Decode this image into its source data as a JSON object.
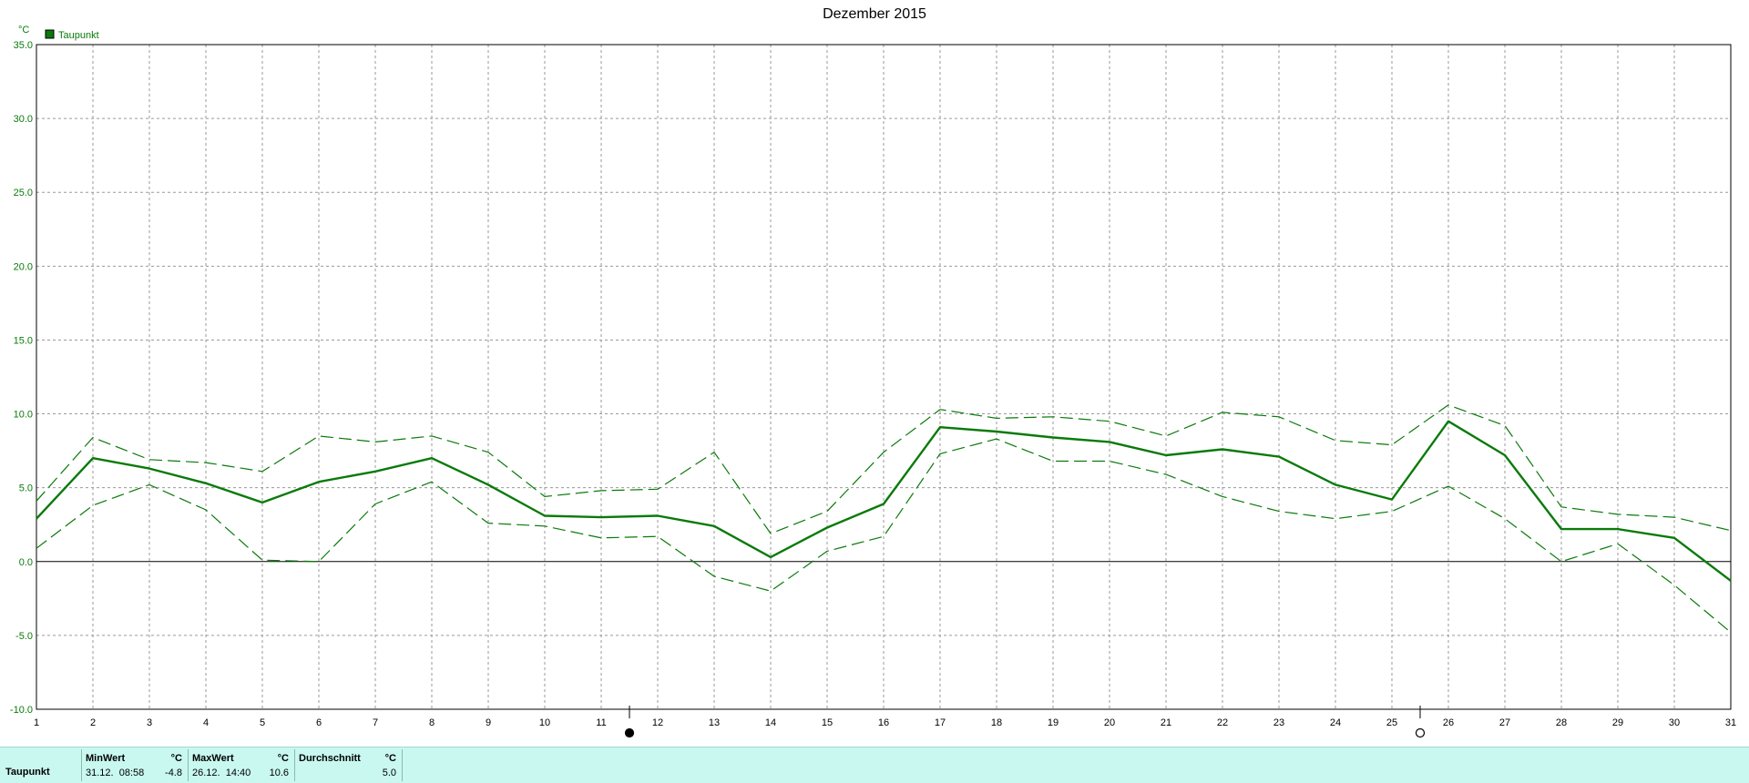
{
  "chart_data": {
    "type": "line",
    "title": "Dezember 2015",
    "ylabel": "°C",
    "ylim": [
      -10,
      35
    ],
    "yticks": [
      "35.0",
      "30.0",
      "25.0",
      "20.0",
      "15.0",
      "10.0",
      "5.0",
      "0.0",
      "-5.0",
      "-10.0"
    ],
    "x": [
      1,
      2,
      3,
      4,
      5,
      6,
      7,
      8,
      9,
      10,
      11,
      12,
      13,
      14,
      15,
      16,
      17,
      18,
      19,
      20,
      21,
      22,
      23,
      24,
      25,
      26,
      27,
      28,
      29,
      30,
      31
    ],
    "xticks": [
      "1",
      "2",
      "3",
      "4",
      "5",
      "6",
      "7",
      "8",
      "9",
      "10",
      "11",
      "12",
      "13",
      "14",
      "15",
      "16",
      "17",
      "18",
      "19",
      "20",
      "21",
      "22",
      "23",
      "24",
      "25",
      "26",
      "27",
      "28",
      "29",
      "30",
      "31"
    ],
    "grid": true,
    "legend_position": "top-left",
    "series": [
      {
        "name": "Taupunkt",
        "role": "mean",
        "style": "solid",
        "color": "#0a7a0a",
        "values": [
          2.9,
          7.0,
          6.3,
          5.3,
          4.0,
          5.4,
          6.1,
          7.0,
          5.2,
          3.1,
          3.0,
          3.1,
          2.4,
          0.3,
          2.3,
          3.9,
          9.1,
          8.8,
          8.4,
          8.1,
          7.2,
          7.6,
          7.1,
          5.2,
          4.2,
          9.5,
          7.2,
          2.2,
          2.2,
          1.6,
          -1.3
        ]
      },
      {
        "role": "max",
        "style": "dashed",
        "color": "#0a7a0a",
        "values": [
          4.1,
          8.4,
          6.9,
          6.7,
          6.1,
          8.5,
          8.1,
          8.5,
          7.4,
          4.4,
          4.8,
          4.9,
          7.4,
          1.9,
          3.4,
          7.4,
          10.3,
          9.7,
          9.8,
          9.5,
          8.5,
          10.1,
          9.8,
          8.2,
          7.9,
          10.6,
          9.2,
          3.7,
          3.2,
          3.0,
          2.1
        ]
      },
      {
        "role": "min",
        "style": "dashed",
        "color": "#0a7a0a",
        "values": [
          0.9,
          3.8,
          5.2,
          3.5,
          0.1,
          0.0,
          3.9,
          5.4,
          2.6,
          2.4,
          1.6,
          1.7,
          -1.0,
          -2.0,
          0.7,
          1.7,
          7.3,
          8.3,
          6.8,
          6.8,
          5.9,
          4.4,
          3.4,
          2.9,
          3.4,
          5.1,
          2.9,
          0.0,
          1.2,
          -1.6,
          -4.8
        ]
      }
    ],
    "annotations": [
      {
        "x": 11.5,
        "marker": "moon-filled"
      },
      {
        "x": 25.5,
        "marker": "moon-empty"
      }
    ]
  },
  "legend": {
    "label": "Taupunkt",
    "color": "#0a7a0a"
  },
  "stats": {
    "row_label": "Taupunkt",
    "min": {
      "header": "MinWert",
      "unit": "°C",
      "date": "31.12.",
      "time": "08:58",
      "value": "-4.8"
    },
    "max": {
      "header": "MaxWert",
      "unit": "°C",
      "date": "26.12.",
      "time": "14:40",
      "value": "10.6"
    },
    "avg": {
      "header": "Durchschnitt",
      "unit": "°C",
      "value": "5.0"
    }
  }
}
